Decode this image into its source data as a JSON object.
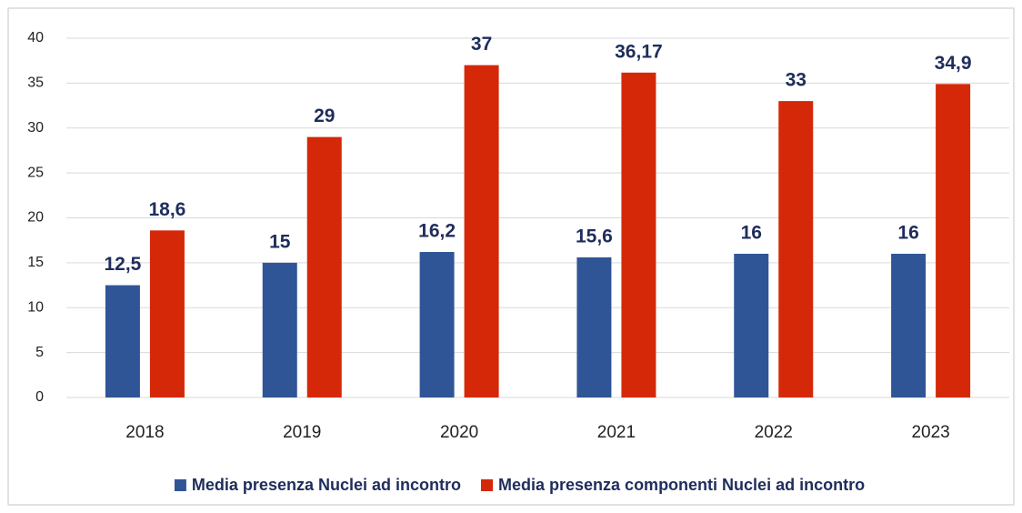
{
  "chart_data": {
    "type": "bar",
    "categories": [
      "2018",
      "2019",
      "2020",
      "2021",
      "2022",
      "2023"
    ],
    "series": [
      {
        "name": "Media presenza Nuclei ad incontro",
        "color": "#2f5597",
        "values": [
          12.5,
          15,
          16.2,
          15.6,
          16,
          16
        ],
        "value_labels": [
          "12,5",
          "15",
          "16,2",
          "15,6",
          "16",
          "16"
        ]
      },
      {
        "name": "Media presenza componenti Nuclei ad incontro",
        "color": "#d42808",
        "values": [
          18.6,
          29,
          37,
          36.17,
          33,
          34.9
        ],
        "value_labels": [
          "18,6",
          "29",
          "37",
          "36,17",
          "33",
          "34,9"
        ]
      }
    ],
    "ylim": [
      0,
      40
    ],
    "yticks": [
      0,
      5,
      10,
      15,
      20,
      25,
      30,
      35,
      40
    ],
    "grid": true,
    "legend": "bottom"
  }
}
